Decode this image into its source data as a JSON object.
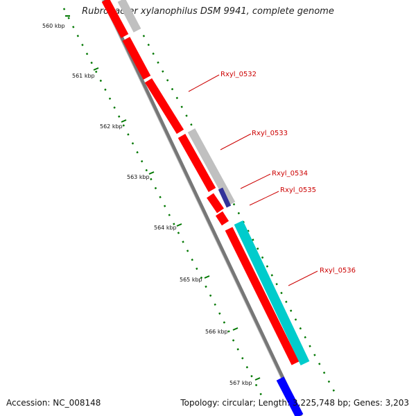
{
  "title": "Rubrobacter xylanophilus DSM 9941, complete genome",
  "footer": {
    "accession": "Accession: NC_008148",
    "summary": "Topology: circular; Length: 3,225,748 bp; Genes: 3,203"
  },
  "ticks": [
    "560 kbp",
    "561 kbp",
    "562 kbp",
    "563 kbp",
    "564 kbp",
    "565 kbp",
    "566 kbp",
    "567 kbp"
  ],
  "gene_labels": [
    "Rxyl_0532",
    "Rxyl_0533",
    "Rxyl_0534",
    "Rxyl_0535",
    "Rxyl_0536"
  ],
  "colors": {
    "red_gene": "#ff0000",
    "grey_gene": "#c0c0c0",
    "navy_gene": "#333399",
    "cyan_gene": "#00cccc",
    "blue_gene": "#0000ff",
    "backbone": "#808080",
    "ruler": "#007700",
    "label": "#cc0000"
  }
}
